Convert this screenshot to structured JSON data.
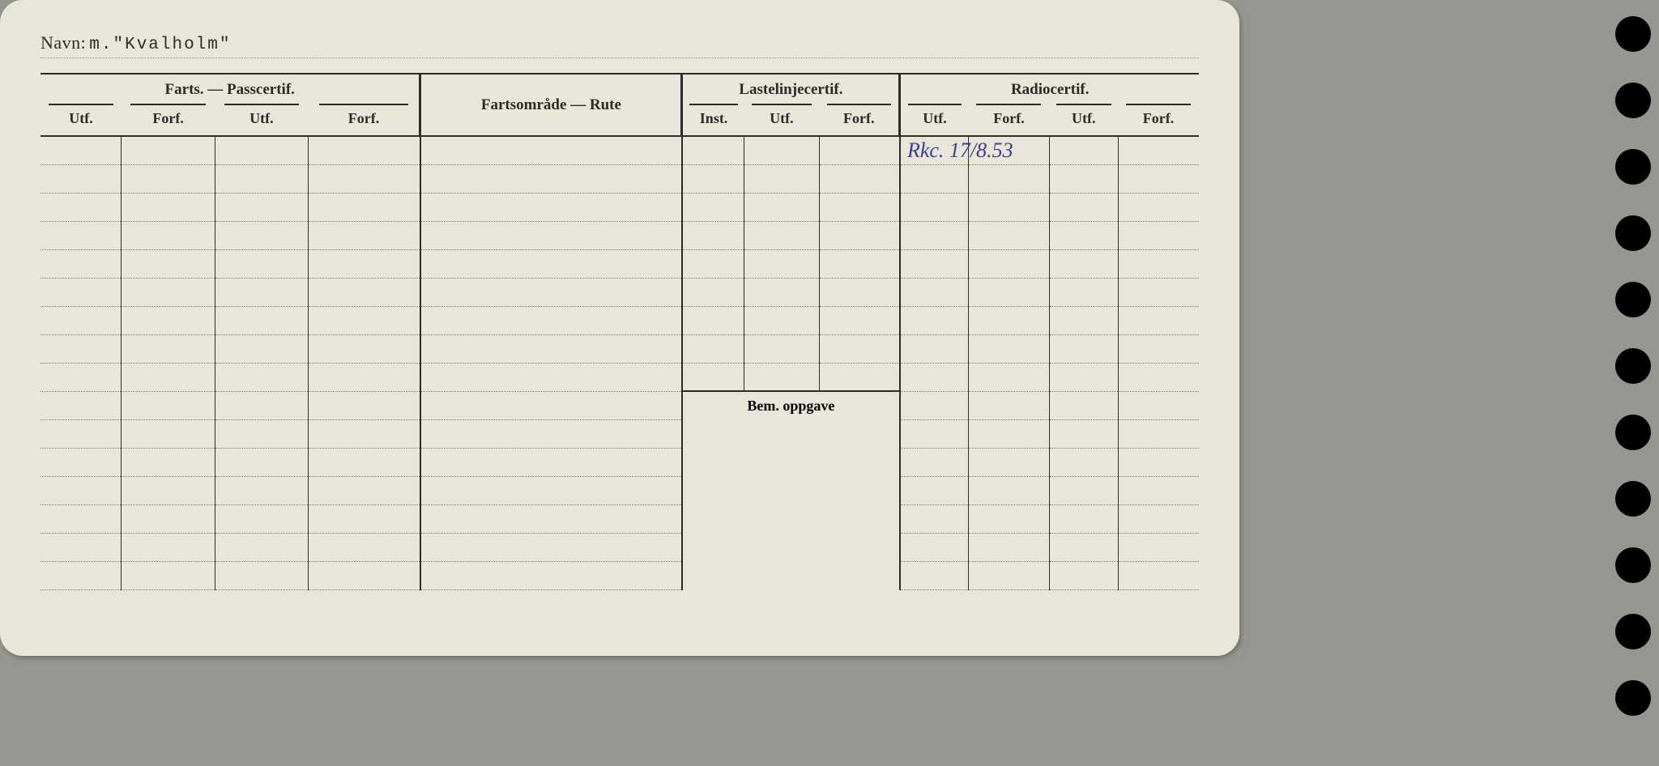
{
  "navn": {
    "label": "Navn:",
    "prefix": "m.",
    "value": "\"Kvalholm\""
  },
  "sections": {
    "farts": "Farts. — Passcertif.",
    "rute": "Fartsområde — Rute",
    "laste": "Lastelinjecertif.",
    "radio": "Radiocertif."
  },
  "cols": {
    "utf": "Utf.",
    "forf": "Forf.",
    "inst": "Inst."
  },
  "bem": "Bem. oppgave",
  "entry": {
    "radio_row1": "Rkc. 17/8.53"
  },
  "rows_upper": 9,
  "rows_lower": 6
}
